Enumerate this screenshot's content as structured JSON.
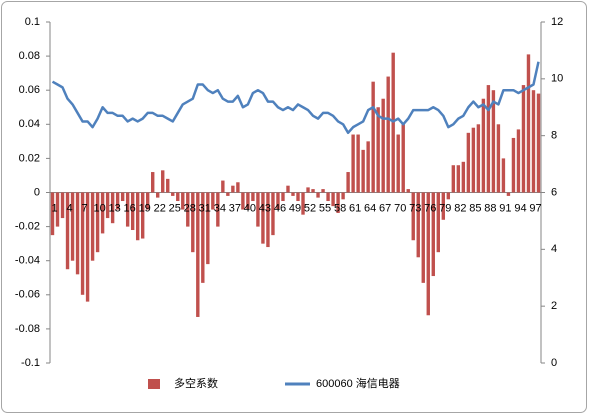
{
  "chart_data": {
    "type": "bar-line",
    "categories": [
      "1",
      null,
      null,
      "4",
      null,
      null,
      "7",
      null,
      null,
      "10",
      null,
      null,
      "13",
      null,
      null,
      "16",
      null,
      null,
      "19",
      null,
      null,
      "22",
      null,
      null,
      "25",
      null,
      null,
      "28",
      null,
      null,
      "31",
      null,
      null,
      "34",
      null,
      null,
      "37",
      null,
      null,
      "40",
      null,
      null,
      "43",
      null,
      null,
      "46",
      null,
      null,
      "49",
      null,
      null,
      "52",
      null,
      null,
      "55",
      null,
      null,
      "58",
      null,
      null,
      "61",
      null,
      null,
      "64",
      null,
      null,
      "67",
      null,
      null,
      "70",
      null,
      null,
      "73",
      null,
      null,
      "76",
      null,
      null,
      "79",
      null,
      null,
      "82",
      null,
      null,
      "85",
      null,
      null,
      "88",
      null,
      null,
      "91",
      null,
      null,
      "94",
      null,
      null,
      "97",
      null
    ],
    "series": [
      {
        "name": "多空系数",
        "type": "bar",
        "color": "#c0504d",
        "values": [
          -0.025,
          -0.02,
          -0.015,
          -0.045,
          -0.04,
          -0.048,
          -0.06,
          -0.064,
          -0.04,
          -0.035,
          -0.024,
          -0.015,
          -0.018,
          -0.01,
          -0.005,
          -0.02,
          -0.022,
          -0.028,
          -0.027,
          -0.01,
          0.012,
          -0.003,
          0.013,
          0.008,
          -0.002,
          -0.005,
          -0.01,
          -0.02,
          -0.035,
          -0.073,
          -0.053,
          -0.042,
          -0.01,
          -0.02,
          0.007,
          -0.002,
          0.004,
          0.006,
          -0.01,
          -0.01,
          -0.005,
          -0.02,
          -0.03,
          -0.032,
          -0.025,
          -0.01,
          -0.005,
          0.004,
          -0.002,
          -0.005,
          -0.013,
          0.003,
          0.002,
          -0.003,
          0.002,
          -0.005,
          -0.008,
          -0.012,
          -0.004,
          0.012,
          0.034,
          0.034,
          0.025,
          0.03,
          0.065,
          0.05,
          0.055,
          0.068,
          0.082,
          0.034,
          0.04,
          0.002,
          -0.028,
          -0.038,
          -0.053,
          -0.072,
          -0.049,
          -0.035,
          -0.016,
          -0.004,
          0.016,
          0.016,
          0.018,
          0.035,
          0.038,
          0.04,
          0.055,
          0.063,
          0.06,
          0.04,
          0.02,
          -0.002,
          0.032,
          0.037,
          0.063,
          0.081,
          0.06,
          0.058
        ]
      },
      {
        "name": "600060 海信电器",
        "type": "line",
        "axis": "y2",
        "color": "#4f81bd",
        "values": [
          9.9,
          9.8,
          9.7,
          9.3,
          9.1,
          8.8,
          8.5,
          8.5,
          8.3,
          8.6,
          9.0,
          8.8,
          8.8,
          8.7,
          8.7,
          8.5,
          8.6,
          8.5,
          8.6,
          8.8,
          8.8,
          8.7,
          8.7,
          8.6,
          8.5,
          8.8,
          9.1,
          9.2,
          9.3,
          9.8,
          9.8,
          9.6,
          9.5,
          9.6,
          9.3,
          9.2,
          9.2,
          9.4,
          9.0,
          9.1,
          9.5,
          9.6,
          9.5,
          9.2,
          9.2,
          9.0,
          8.9,
          9.0,
          8.9,
          9.1,
          9.0,
          8.9,
          8.7,
          8.6,
          8.8,
          8.8,
          8.7,
          8.5,
          8.4,
          8.1,
          8.3,
          8.4,
          8.5,
          8.9,
          9.0,
          8.7,
          8.6,
          8.6,
          8.5,
          8.6,
          8.4,
          8.6,
          8.9,
          8.9,
          8.9,
          8.9,
          9.0,
          8.9,
          8.7,
          8.3,
          8.4,
          8.6,
          8.7,
          9.0,
          9.2,
          9.0,
          9.1,
          8.9,
          9.2,
          9.1,
          9.6,
          9.6,
          9.6,
          9.5,
          9.6,
          9.7,
          9.8,
          10.6
        ]
      }
    ],
    "ylim": [
      -0.1,
      0.1
    ],
    "yticks": [
      -0.1,
      -0.08,
      -0.06,
      -0.04,
      -0.02,
      0,
      0.02,
      0.04,
      0.06,
      0.08,
      0.1
    ],
    "y2lim": [
      0,
      12
    ],
    "y2ticks": [
      0,
      2,
      4,
      6,
      8,
      10,
      12
    ],
    "legend": "bottom"
  }
}
